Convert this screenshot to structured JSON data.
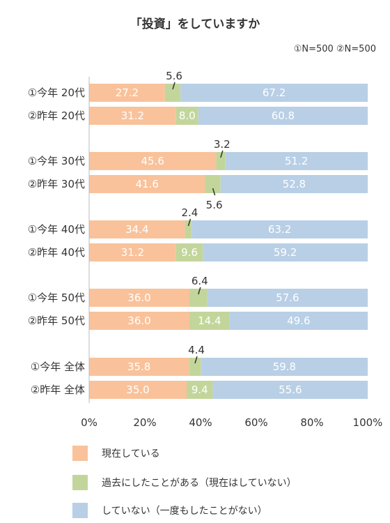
{
  "chart_data": {
    "type": "bar",
    "orientation": "horizontal",
    "stacked": true,
    "percent": true,
    "title": "「投資」をしていますか",
    "note": "①N=500 ②N=500",
    "categories": [
      "①今年 20代",
      "②昨年 20代",
      "①今年 30代",
      "②昨年 30代",
      "①今年 40代",
      "②昨年 40代",
      "①今年 50代",
      "②昨年 50代",
      "①今年 全体",
      "②昨年 全体"
    ],
    "series": [
      {
        "name": "現在している",
        "color": "#f9c29b",
        "values": [
          27.2,
          31.2,
          45.6,
          41.6,
          34.4,
          31.2,
          36.0,
          36.0,
          35.8,
          35.0
        ]
      },
      {
        "name": "過去にしたことがある（現在はしていない）",
        "color": "#c2d69b",
        "values": [
          5.6,
          8.0,
          3.2,
          5.6,
          2.4,
          9.6,
          6.4,
          14.4,
          4.4,
          9.4
        ]
      },
      {
        "name": "していない（一度もしたことがない）",
        "color": "#b8cfe6",
        "values": [
          67.2,
          60.8,
          51.2,
          52.8,
          63.2,
          59.2,
          57.6,
          49.6,
          59.8,
          55.6
        ]
      }
    ],
    "value_labels": [
      [
        "27.2",
        "31.2",
        "45.6",
        "41.6",
        "34.4",
        "31.2",
        "36.0",
        "36.0",
        "35.8",
        "35.0"
      ],
      [
        "5.6",
        "8.0",
        "3.2",
        "5.6",
        "2.4",
        "9.6",
        "6.4",
        "14.4",
        "4.4",
        "9.4"
      ],
      [
        "67.2",
        "60.8",
        "51.2",
        "52.8",
        "63.2",
        "59.2",
        "57.6",
        "49.6",
        "59.8",
        "55.6"
      ]
    ],
    "x_ticks": [
      "0%",
      "20%",
      "40%",
      "60%",
      "80%",
      "100%"
    ],
    "xlim": [
      0,
      100
    ],
    "legend_position": "bottom",
    "grid": false
  }
}
